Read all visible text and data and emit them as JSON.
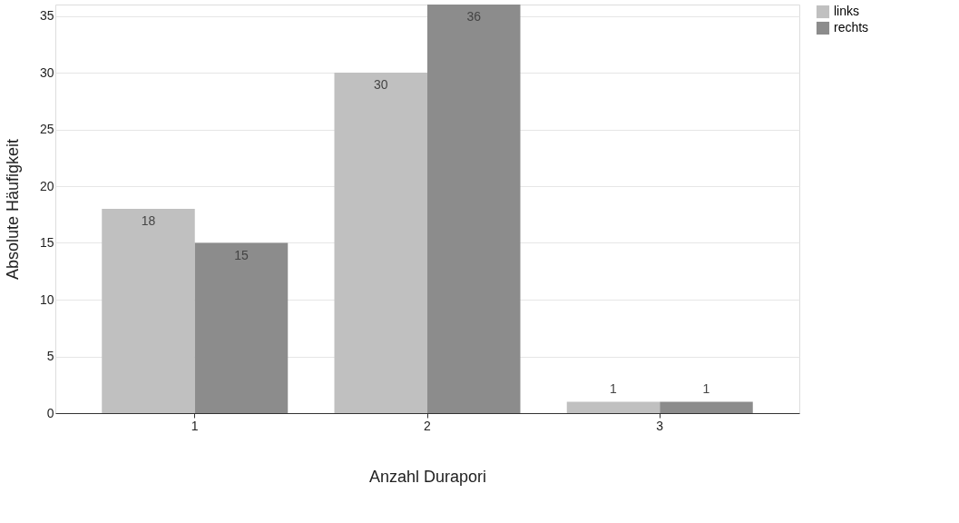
{
  "chart_data": {
    "type": "bar",
    "xlabel": "Anzahl Durapori",
    "ylabel": "Absolute Häufigkeit",
    "categories": [
      "1",
      "2",
      "3"
    ],
    "series": [
      {
        "name": "links",
        "color": "#c0c0c0",
        "values": [
          18,
          30,
          1
        ]
      },
      {
        "name": "rechts",
        "color": "#8c8c8c",
        "values": [
          15,
          36,
          1
        ]
      }
    ],
    "ylim": [
      0,
      36
    ],
    "yticks": [
      0,
      5,
      10,
      15,
      20,
      25,
      30,
      35
    ],
    "grid": "y",
    "legend": "top right",
    "data_labels": true
  }
}
